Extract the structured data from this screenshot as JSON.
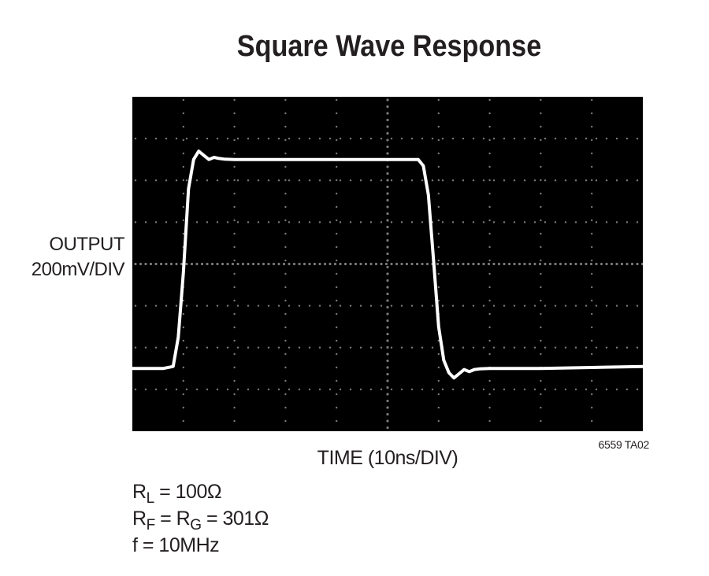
{
  "chart_data": {
    "type": "line",
    "title": "Square Wave Response",
    "ylabel": [
      "OUTPUT",
      "200mV/DIV"
    ],
    "xlabel": "TIME (10ns/DIV)",
    "figure_id": "6559 TA02",
    "grid": true,
    "divisions": {
      "x": 10,
      "y": 8
    },
    "xlim": [
      0,
      100
    ],
    "ylim": [
      -800,
      800
    ],
    "x_unit": "ns",
    "y_unit": "mV",
    "series": [
      {
        "x": [
          0,
          6,
          8,
          9,
          10,
          11,
          12,
          13,
          14,
          15,
          16,
          17,
          18,
          20,
          24,
          30,
          40,
          50,
          56,
          57,
          58,
          59,
          60,
          61,
          62,
          63,
          64,
          65,
          66,
          67,
          68,
          70,
          74,
          80,
          90,
          100
        ],
        "y": [
          -500,
          -500,
          -490,
          -350,
          -40,
          360,
          500,
          540,
          520,
          500,
          510,
          505,
          502,
          500,
          500,
          500,
          500,
          500,
          500,
          470,
          330,
          20,
          -300,
          -460,
          -520,
          -545,
          -525,
          -505,
          -515,
          -505,
          -502,
          -500,
          -500,
          -500,
          -495,
          -490
        ]
      }
    ],
    "conditions": [
      {
        "symbol": "R",
        "sub": "L",
        "rest": " = 100Ω"
      },
      {
        "symbol": "R",
        "sub": "F",
        "middle": " = R",
        "sub2": "G",
        "rest": " = 301Ω"
      },
      {
        "text": "f = 10MHz"
      }
    ]
  }
}
